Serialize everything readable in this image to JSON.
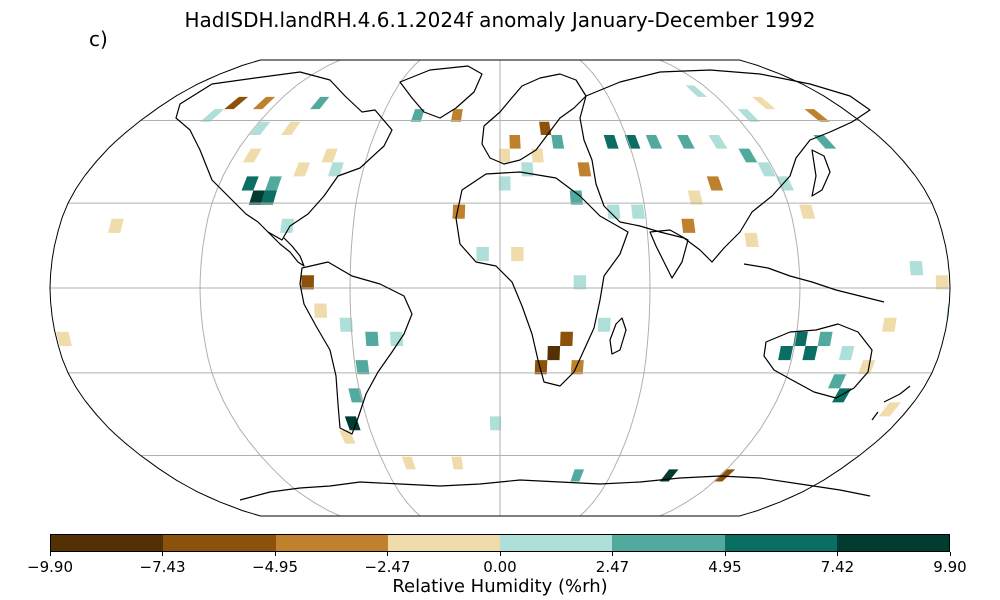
{
  "title": "HadISDH.landRH.4.6.1.2024f anomaly January-December 1992",
  "panel_label": "c)",
  "colorbar": {
    "label": "Relative Humidity (%rh)",
    "ticks": [
      "−9.90",
      "−7.43",
      "−4.95",
      "−2.47",
      "0.00",
      "2.47",
      "4.95",
      "7.42",
      "9.90"
    ],
    "colors": [
      "#543005",
      "#8c510a",
      "#bf812d",
      "#f0dcaa",
      "#aedfd9",
      "#52aa9e",
      "#0b6e63",
      "#003c30"
    ]
  },
  "map_data": {
    "projection": "Robinson",
    "variable": "Relative Humidity anomaly",
    "units": "%rh",
    "grid_resolution_deg": 5,
    "anomaly_cells": [
      {
        "lon": -102,
        "lat": 32,
        "value": 8
      },
      {
        "lon": -97,
        "lat": 32,
        "value": 6
      },
      {
        "lon": -107,
        "lat": 37,
        "value": 5
      },
      {
        "lon": -97,
        "lat": 37,
        "value": 4
      },
      {
        "lon": -87,
        "lat": 42,
        "value": -2
      },
      {
        "lon": -112,
        "lat": 47,
        "value": -2
      },
      {
        "lon": -77,
        "lat": 47,
        "value": -1
      },
      {
        "lon": -72,
        "lat": 42,
        "value": 2
      },
      {
        "lon": -117,
        "lat": 57,
        "value": 1
      },
      {
        "lon": -102,
        "lat": 57,
        "value": -2
      },
      {
        "lon": -147,
        "lat": 62,
        "value": 2
      },
      {
        "lon": -142,
        "lat": 67,
        "value": -5
      },
      {
        "lon": -127,
        "lat": 67,
        "value": -3
      },
      {
        "lon": -97,
        "lat": 67,
        "value": 3
      },
      {
        "lon": -87,
        "lat": 22,
        "value": 2
      },
      {
        "lon": -157,
        "lat": 22,
        "value": -1
      },
      {
        "lon": -77,
        "lat": 2,
        "value": -6
      },
      {
        "lon": -72,
        "lat": -8,
        "value": -2
      },
      {
        "lon": -62,
        "lat": -13,
        "value": 2
      },
      {
        "lon": -52,
        "lat": -18,
        "value": 3
      },
      {
        "lon": -42,
        "lat": -18,
        "value": 2
      },
      {
        "lon": -57,
        "lat": -28,
        "value": 4
      },
      {
        "lon": -62,
        "lat": -38,
        "value": 3
      },
      {
        "lon": -67,
        "lat": -48,
        "value": 9
      },
      {
        "lon": -72,
        "lat": -53,
        "value": -2
      },
      {
        "lon": -177,
        "lat": -18,
        "value": -1
      },
      {
        "lon": 22,
        "lat": -23,
        "value": -8
      },
      {
        "lon": 27,
        "lat": -18,
        "value": -6
      },
      {
        "lon": 17,
        "lat": -28,
        "value": -7
      },
      {
        "lon": 32,
        "lat": -28,
        "value": -3
      },
      {
        "lon": 42,
        "lat": -13,
        "value": 1
      },
      {
        "lon": 2,
        "lat": 37,
        "value": 2
      },
      {
        "lon": 12,
        "lat": 42,
        "value": 2
      },
      {
        "lon": 17,
        "lat": 47,
        "value": -2
      },
      {
        "lon": 2,
        "lat": 47,
        "value": -1
      },
      {
        "lon": 27,
        "lat": 52,
        "value": 3
      },
      {
        "lon": 22,
        "lat": 57,
        "value": -5
      },
      {
        "lon": 7,
        "lat": 52,
        "value": -3
      },
      {
        "lon": 37,
        "lat": 42,
        "value": -4
      },
      {
        "lon": 32,
        "lat": 32,
        "value": 3
      },
      {
        "lon": 47,
        "lat": 27,
        "value": 1
      },
      {
        "lon": 57,
        "lat": 27,
        "value": 2
      },
      {
        "lon": 52,
        "lat": 52,
        "value": 5
      },
      {
        "lon": 62,
        "lat": 52,
        "value": 7
      },
      {
        "lon": 72,
        "lat": 52,
        "value": 4
      },
      {
        "lon": 87,
        "lat": 52,
        "value": 3
      },
      {
        "lon": 102,
        "lat": 52,
        "value": 2
      },
      {
        "lon": 112,
        "lat": 47,
        "value": 4
      },
      {
        "lon": 117,
        "lat": 42,
        "value": 1
      },
      {
        "lon": 92,
        "lat": 37,
        "value": -3
      },
      {
        "lon": 82,
        "lat": 32,
        "value": -2
      },
      {
        "lon": 77,
        "lat": 22,
        "value": -3
      },
      {
        "lon": 102,
        "lat": 17,
        "value": -1
      },
      {
        "lon": 122,
        "lat": 37,
        "value": 1
      },
      {
        "lon": 127,
        "lat": 27,
        "value": -2
      },
      {
        "lon": 127,
        "lat": 62,
        "value": 2
      },
      {
        "lon": 142,
        "lat": 67,
        "value": -2
      },
      {
        "lon": 112,
        "lat": 72,
        "value": 1
      },
      {
        "lon": 152,
        "lat": 52,
        "value": 4
      },
      {
        "lon": 162,
        "lat": 62,
        "value": -3
      },
      {
        "lon": 117,
        "lat": -23,
        "value": 5
      },
      {
        "lon": 127,
        "lat": -23,
        "value": 6
      },
      {
        "lon": 122,
        "lat": -18,
        "value": 7
      },
      {
        "lon": 132,
        "lat": -18,
        "value": 3
      },
      {
        "lon": 142,
        "lat": -23,
        "value": 1
      },
      {
        "lon": 142,
        "lat": -33,
        "value": 4
      },
      {
        "lon": 147,
        "lat": -38,
        "value": 7
      },
      {
        "lon": 152,
        "lat": -28,
        "value": -2
      },
      {
        "lon": 172,
        "lat": -43,
        "value": -1
      },
      {
        "lon": 157,
        "lat": -13,
        "value": -1
      },
      {
        "lon": 167,
        "lat": 7,
        "value": 1
      },
      {
        "lon": 177,
        "lat": 2,
        "value": -1
      },
      {
        "lon": 182,
        "lat": -8,
        "value": 2
      },
      {
        "lon": -42,
        "lat": 62,
        "value": 3
      },
      {
        "lon": -22,
        "lat": 62,
        "value": -3
      },
      {
        "lon": -17,
        "lat": 27,
        "value": -4
      },
      {
        "lon": -7,
        "lat": 12,
        "value": 2
      },
      {
        "lon": 7,
        "lat": 12,
        "value": -1
      },
      {
        "lon": 32,
        "lat": 2,
        "value": 1
      },
      {
        "lon": -2,
        "lat": -48,
        "value": 1
      },
      {
        "lon": 42,
        "lat": -68,
        "value": 3
      },
      {
        "lon": 92,
        "lat": -68,
        "value": 8
      },
      {
        "lon": 122,
        "lat": -68,
        "value": -5
      },
      {
        "lon": -22,
        "lat": -63,
        "value": -2
      },
      {
        "lon": -47,
        "lat": -63,
        "value": -1
      }
    ]
  }
}
